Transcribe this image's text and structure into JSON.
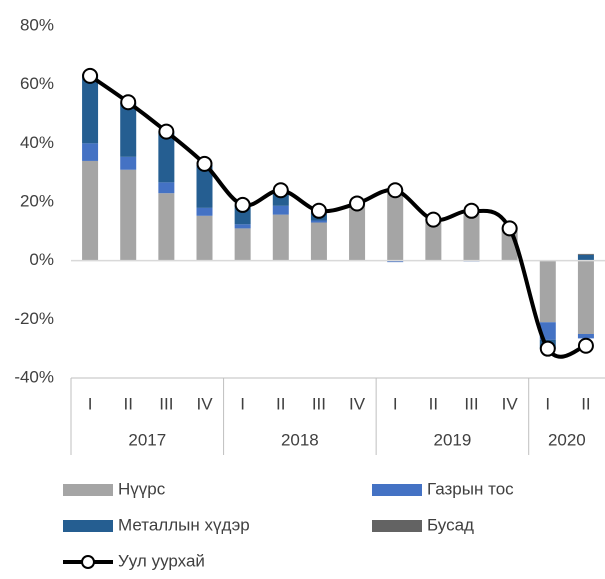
{
  "chart_data": {
    "type": "stacked-bar-line",
    "categories": [
      "I",
      "II",
      "III",
      "IV",
      "I",
      "II",
      "III",
      "IV",
      "I",
      "II",
      "III",
      "IV",
      "I",
      "II"
    ],
    "groups": [
      {
        "label": "2017",
        "count": 4
      },
      {
        "label": "2018",
        "count": 4
      },
      {
        "label": "2019",
        "count": 4
      },
      {
        "label": "2020",
        "count": 2
      }
    ],
    "series": [
      {
        "name": "Нүүрс",
        "color": "#a5a5a5",
        "values": [
          34,
          31,
          23,
          15.3,
          11,
          15.7,
          13,
          19.4,
          24,
          14,
          17,
          11,
          -21,
          -25
        ]
      },
      {
        "name": "Газрын тос",
        "color": "#4472c4",
        "values": [
          6,
          4.4,
          3.7,
          2.7,
          1.4,
          3,
          0.7,
          0.3,
          -0.5,
          0.2,
          -0.3,
          0.1,
          -6,
          -1.5
        ]
      },
      {
        "name": "Металлын хүдэр",
        "color": "#255e91",
        "values": [
          23.5,
          18.4,
          17,
          14.6,
          6.5,
          5.5,
          2.7,
          0.2,
          0.3,
          0.1,
          0.2,
          0.1,
          -3,
          2
        ]
      },
      {
        "name": "Бусад",
        "color": "#636363",
        "values": [
          0,
          0,
          0,
          0,
          0,
          0,
          0,
          0,
          0,
          0,
          0,
          0,
          0,
          0.3
        ]
      },
      {
        "name": "Уул уурхай",
        "color": "#000000",
        "type": "line",
        "values": [
          63,
          54,
          44,
          33,
          19,
          24,
          17,
          19.5,
          24,
          14,
          17,
          11,
          -30,
          -29
        ]
      }
    ],
    "ylim": [
      -40,
      80
    ],
    "yticks": [
      {
        "value": -40,
        "label": "-40%"
      },
      {
        "value": -20,
        "label": "-20%"
      },
      {
        "value": 0,
        "label": "0%"
      },
      {
        "value": 20,
        "label": "20%"
      },
      {
        "value": 40,
        "label": "40%"
      },
      {
        "value": 60,
        "label": "60%"
      },
      {
        "value": 80,
        "label": "80%"
      }
    ]
  }
}
